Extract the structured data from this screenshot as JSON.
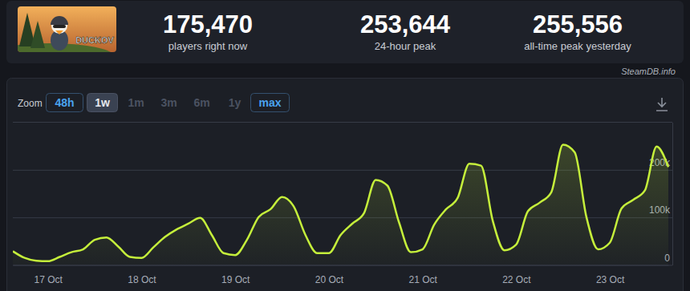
{
  "thumbnail": {
    "logo": "DUCKOV"
  },
  "header": {
    "stats": [
      {
        "value": "175,470",
        "label": "players right now"
      },
      {
        "value": "253,644",
        "label": "24-hour peak"
      },
      {
        "value": "255,556",
        "label": "all-time peak yesterday"
      }
    ]
  },
  "source": "SteamDB.info",
  "zoom": {
    "label": "Zoom",
    "options": [
      "48h",
      "1w",
      "1m",
      "3m",
      "6m",
      "1y",
      "max"
    ],
    "selected": "1w"
  },
  "chart_data": {
    "type": "area",
    "categories": [
      null,
      null,
      null,
      "17 Oct",
      null,
      null,
      null,
      null,
      null,
      null,
      null,
      "18 Oct",
      null,
      null,
      null,
      null,
      null,
      null,
      null,
      "19 Oct",
      null,
      null,
      null,
      null,
      null,
      null,
      null,
      "20 Oct",
      null,
      null,
      null,
      null,
      null,
      null,
      null,
      "21 Oct",
      null,
      null,
      null,
      null,
      null,
      null,
      null,
      "22 Oct",
      null,
      null,
      null,
      null,
      null,
      null,
      null,
      "23 Oct",
      null,
      null,
      null,
      null,
      null
    ],
    "values": [
      28000,
      14000,
      8000,
      7000,
      16000,
      26000,
      32000,
      52000,
      57000,
      38000,
      16000,
      14000,
      36000,
      58000,
      74000,
      86000,
      98000,
      62000,
      24000,
      20000,
      52000,
      100000,
      116000,
      142000,
      122000,
      62000,
      24000,
      24000,
      62000,
      86000,
      108000,
      178000,
      166000,
      88000,
      26000,
      32000,
      84000,
      116000,
      140000,
      212000,
      208000,
      92000,
      30000,
      42000,
      112000,
      130000,
      152000,
      252000,
      236000,
      100000,
      32000,
      46000,
      118000,
      136000,
      156000,
      248000,
      205000
    ],
    "color": "#c5ef3b",
    "ylim": [
      0,
      300000
    ],
    "yticks": [
      0,
      {
        "value": 100000,
        "label": "100k"
      },
      {
        "value": 200000,
        "label": "200k"
      }
    ],
    "grid": true
  }
}
